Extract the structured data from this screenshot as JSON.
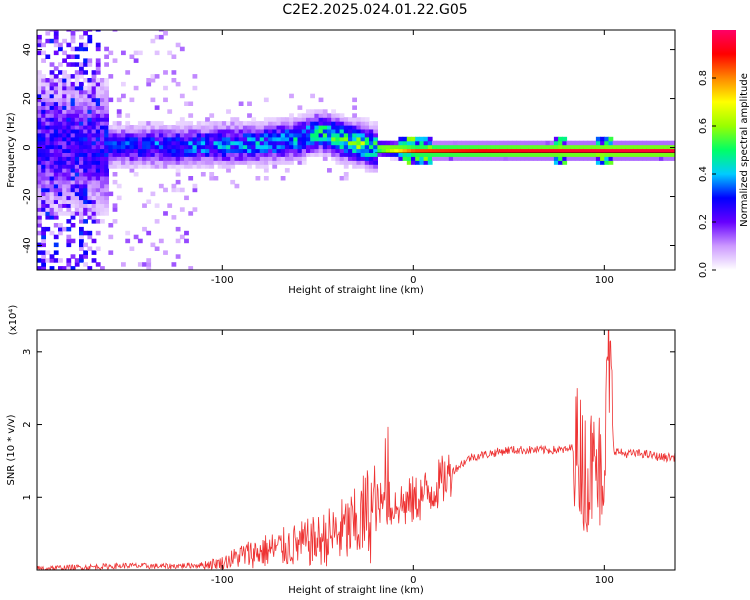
{
  "figure_title": "C2E2.2025.024.01.22.G05",
  "chart_data": [
    {
      "type": "heatmap",
      "xlabel": "Height of straight line (km)",
      "ylabel": "Frequency (Hz)",
      "xlim": [
        -197,
        137
      ],
      "ylim": [
        -50,
        48
      ],
      "x_ticks": [
        -100,
        0,
        100
      ],
      "x_tick_labels": [
        "-100",
        "0",
        "100"
      ],
      "y_ticks": [
        -40,
        -20,
        0,
        20,
        40
      ],
      "y_tick_labels": [
        "-40",
        "-20",
        "0",
        "20",
        "40"
      ],
      "colorbar": {
        "label": "Normalized spectral amplitude",
        "range": [
          0.0,
          1.0
        ],
        "ticks": [
          0.0,
          0.2,
          0.4,
          0.6,
          0.8
        ],
        "tick_labels": [
          "0.0",
          "0.2",
          "0.4",
          "0.6",
          "0.8"
        ],
        "colors": [
          "#ffffff",
          "#cc99ff",
          "#6600ff",
          "#0000ff",
          "#00ccff",
          "#00ff66",
          "#99ff00",
          "#ffff00",
          "#ff8800",
          "#ff0000",
          "#ff0066"
        ]
      },
      "ridge": [
        {
          "x": -170,
          "f": 0,
          "amp": 0.28
        },
        {
          "x": -150,
          "f": 0,
          "amp": 0.35
        },
        {
          "x": -120,
          "f": 0,
          "amp": 0.38
        },
        {
          "x": -100,
          "f": 0.5,
          "amp": 0.4
        },
        {
          "x": -80,
          "f": 1,
          "amp": 0.42
        },
        {
          "x": -60,
          "f": 3,
          "amp": 0.45
        },
        {
          "x": -50,
          "f": 6,
          "amp": 0.5
        },
        {
          "x": -40,
          "f": 3,
          "amp": 0.55
        },
        {
          "x": -30,
          "f": 1,
          "amp": 0.58
        },
        {
          "x": -20,
          "f": -1,
          "amp": 0.6
        },
        {
          "x": 0,
          "f": -2,
          "amp": 0.85
        },
        {
          "x": 50,
          "f": -2,
          "amp": 0.92
        },
        {
          "x": 100,
          "f": -2,
          "amp": 0.95
        },
        {
          "x": 137,
          "f": -2,
          "amp": 0.95
        }
      ]
    },
    {
      "type": "line",
      "xlabel": "Height of straight line (km)",
      "ylabel": "SNR (10 * v/v)",
      "y_multiplier_label": "(x10⁴)",
      "xlim": [
        -197,
        137
      ],
      "ylim": [
        0,
        3.3
      ],
      "x_ticks": [
        -100,
        0,
        100
      ],
      "x_tick_labels": [
        "-100",
        "0",
        "100"
      ],
      "y_ticks": [
        1,
        2,
        3
      ],
      "y_tick_labels": [
        "1",
        "2",
        "3"
      ],
      "color": "#ee3333",
      "series": [
        {
          "x": [
            -197,
            -170,
            -150,
            -130,
            -110,
            -100,
            -90,
            -80,
            -70,
            -60,
            -50,
            -40,
            -30,
            -25,
            -20,
            -15,
            -10,
            -5,
            0,
            10,
            20,
            30,
            40,
            50,
            60,
            70,
            80,
            85,
            90,
            95,
            100,
            102,
            105,
            110,
            120,
            130,
            137
          ],
          "y": [
            0.02,
            0.04,
            0.06,
            0.05,
            0.07,
            0.1,
            0.2,
            0.25,
            0.3,
            0.35,
            0.4,
            0.5,
            0.6,
            0.75,
            0.85,
            0.9,
            0.95,
            0.9,
            0.95,
            1.1,
            1.35,
            1.55,
            1.6,
            1.65,
            1.65,
            1.65,
            1.65,
            1.7,
            1.5,
            1.3,
            1.6,
            3.2,
            1.65,
            1.6,
            1.6,
            1.55,
            1.55
          ]
        }
      ]
    }
  ]
}
